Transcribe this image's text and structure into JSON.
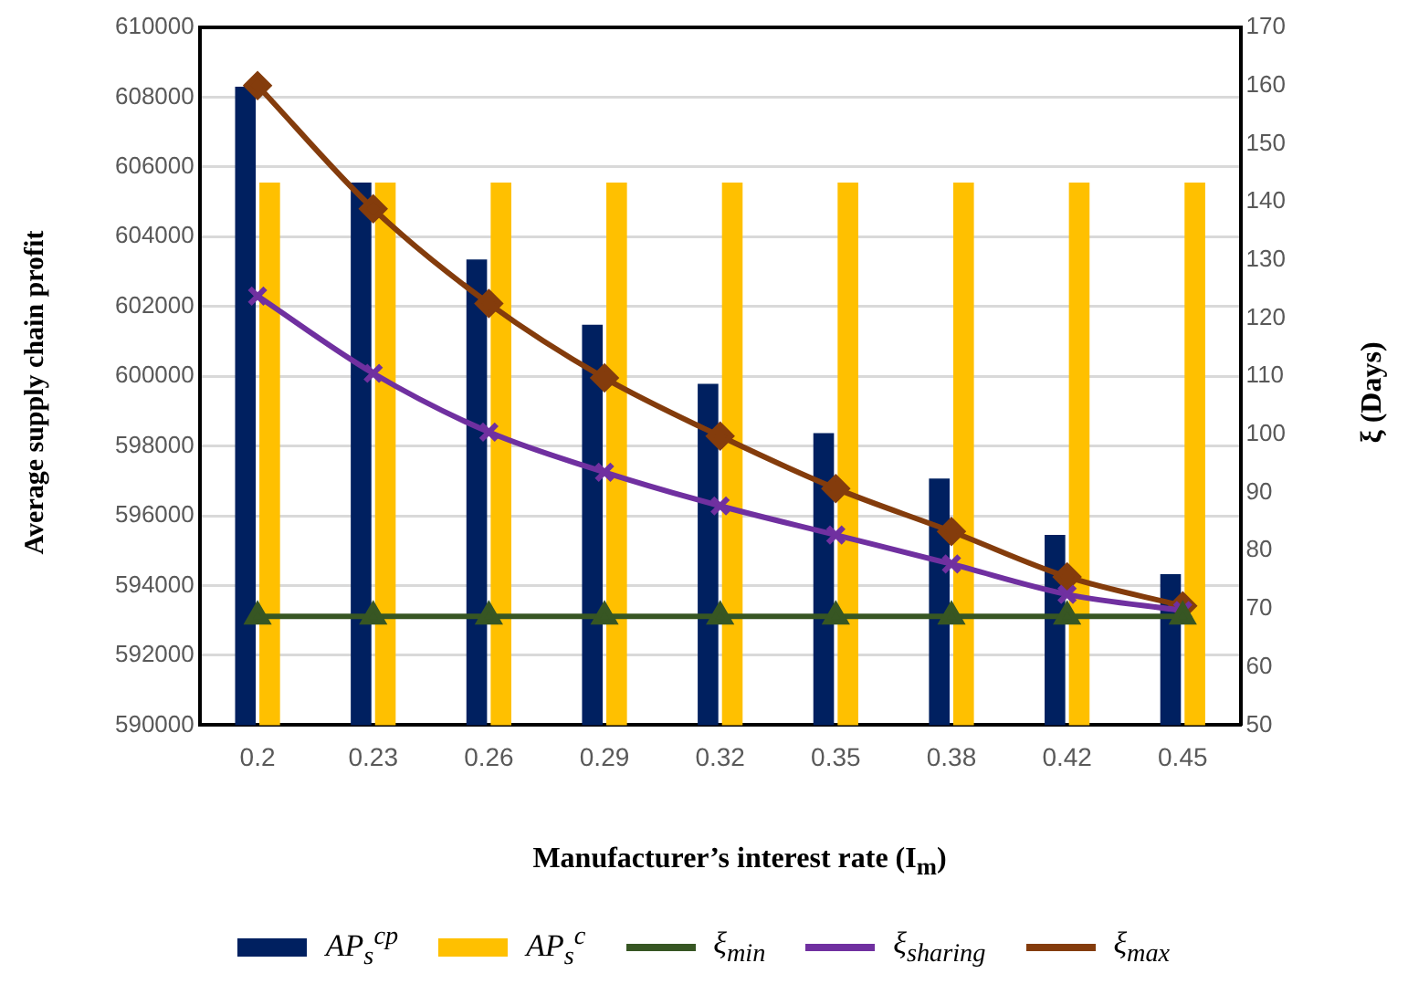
{
  "chart_data": {
    "type": "bar",
    "xlabel": "Manufacturer’s interest rate (I$_{m}$)",
    "ylabel": "Average supply chain profit",
    "y2label": "ξ (Days)",
    "categories": [
      "0.2",
      "0.23",
      "0.26",
      "0.29",
      "0.32",
      "0.35",
      "0.38",
      "0.42",
      "0.45"
    ],
    "series": [
      {
        "name": "AP$_{s}$$^{cp}$",
        "color": "#002060",
        "values": [
          608300,
          605550,
          603350,
          601480,
          599780,
          598370,
          597070,
          595450,
          594330
        ]
      },
      {
        "name": "AP$_{s}$$^{c}$",
        "color": "#ffc000",
        "values": [
          605550,
          605550,
          605550,
          605550,
          605550,
          605550,
          605550,
          605550,
          605550
        ]
      },
      {
        "name": "ξ$_{min}$",
        "type": "line",
        "axis": "y2",
        "marker": "triangle",
        "color": "#375623",
        "values": [
          68.7,
          68.7,
          68.7,
          68.7,
          68.7,
          68.7,
          68.7,
          68.7,
          68.7
        ]
      },
      {
        "name": "ξ$_{sharing}$",
        "type": "line",
        "axis": "y2",
        "marker": "cross",
        "color": "#7030a0",
        "values": [
          123.8,
          110.5,
          100.4,
          93.5,
          87.7,
          82.7,
          77.7,
          72.5,
          69.7
        ]
      },
      {
        "name": "ξ$_{max}$",
        "type": "line",
        "axis": "y2",
        "marker": "diamond",
        "color": "#843c0c",
        "values": [
          160,
          138.8,
          122.5,
          109.7,
          99.7,
          90.7,
          83.3,
          75.5,
          70.5
        ]
      }
    ],
    "ylim": [
      590000,
      610000
    ],
    "yticks": [
      590000,
      592000,
      594000,
      596000,
      598000,
      600000,
      602000,
      604000,
      606000,
      608000,
      610000
    ],
    "y2lim": [
      50,
      170
    ],
    "y2ticks": [
      50,
      60,
      70,
      80,
      90,
      100,
      110,
      120,
      130,
      140,
      150,
      160,
      170
    ],
    "grid": "y",
    "legend": "bottom"
  }
}
